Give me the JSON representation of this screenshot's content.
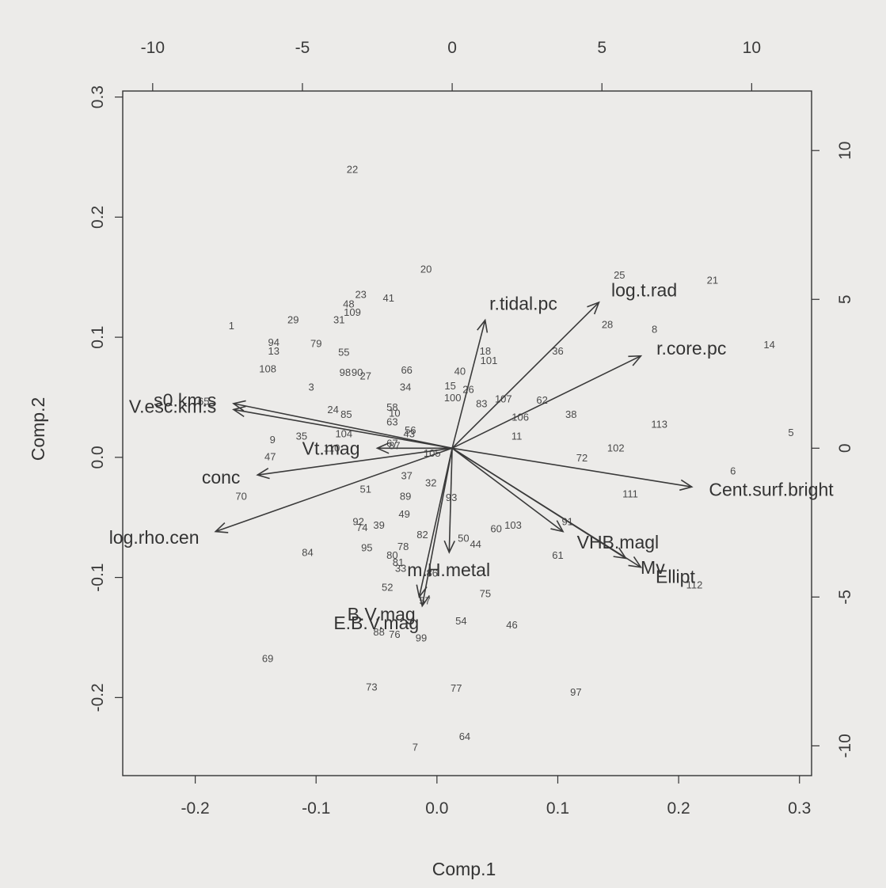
{
  "chart_data": {
    "type": "scatter",
    "xlabel": "Comp.1",
    "ylabel": "Comp.2",
    "xlim": [
      -0.26,
      0.31
    ],
    "ylim": [
      -0.265,
      0.305
    ],
    "x_ticks": [
      "-0.2",
      "-0.1",
      "0.0",
      "0.1",
      "0.2",
      "0.3"
    ],
    "y_ticks": [
      "-0.2",
      "-0.1",
      "0.0",
      "0.1",
      "0.2",
      "0.3"
    ],
    "top_ticks": [
      "-10",
      "-5",
      "0",
      "5",
      "10"
    ],
    "right_ticks": [
      "-10",
      "-5",
      "0",
      "5",
      "10"
    ],
    "loading_range": [
      -11,
      12
    ],
    "points": [
      {
        "label": "1",
        "x": -0.17,
        "y": 0.11
      },
      {
        "label": "3",
        "x": -0.104,
        "y": 0.059
      },
      {
        "label": "5",
        "x": 0.293,
        "y": 0.021
      },
      {
        "label": "6",
        "x": 0.245,
        "y": -0.011
      },
      {
        "label": "7",
        "x": -0.018,
        "y": -0.241
      },
      {
        "label": "8",
        "x": 0.18,
        "y": 0.107
      },
      {
        "label": "9",
        "x": -0.136,
        "y": 0.015
      },
      {
        "label": "10",
        "x": -0.035,
        "y": 0.037
      },
      {
        "label": "11",
        "x": 0.066,
        "y": 0.018
      },
      {
        "label": "13",
        "x": -0.135,
        "y": 0.089
      },
      {
        "label": "14",
        "x": 0.275,
        "y": 0.094
      },
      {
        "label": "15",
        "x": 0.011,
        "y": 0.06
      },
      {
        "label": "18",
        "x": 0.04,
        "y": 0.089
      },
      {
        "label": "20",
        "x": -0.009,
        "y": 0.157
      },
      {
        "label": "21",
        "x": 0.228,
        "y": 0.148
      },
      {
        "label": "22",
        "x": -0.07,
        "y": 0.24
      },
      {
        "label": "23",
        "x": -0.063,
        "y": 0.136
      },
      {
        "label": "24",
        "x": -0.086,
        "y": 0.04
      },
      {
        "label": "25",
        "x": 0.151,
        "y": 0.152
      },
      {
        "label": "26",
        "x": 0.026,
        "y": 0.057
      },
      {
        "label": "27",
        "x": -0.059,
        "y": 0.068
      },
      {
        "label": "28",
        "x": 0.141,
        "y": 0.111
      },
      {
        "label": "29",
        "x": -0.119,
        "y": 0.115
      },
      {
        "label": "31",
        "x": -0.081,
        "y": 0.115
      },
      {
        "label": "32",
        "x": -0.005,
        "y": -0.021
      },
      {
        "label": "33",
        "x": -0.03,
        "y": -0.092
      },
      {
        "label": "34",
        "x": -0.026,
        "y": 0.059
      },
      {
        "label": "35",
        "x": -0.112,
        "y": 0.018
      },
      {
        "label": "36",
        "x": 0.1,
        "y": 0.089
      },
      {
        "label": "37",
        "x": -0.025,
        "y": -0.015
      },
      {
        "label": "38",
        "x": 0.111,
        "y": 0.036
      },
      {
        "label": "39",
        "x": -0.048,
        "y": -0.056
      },
      {
        "label": "40",
        "x": 0.019,
        "y": 0.072
      },
      {
        "label": "41",
        "x": -0.04,
        "y": 0.133
      },
      {
        "label": "43",
        "x": -0.023,
        "y": 0.02
      },
      {
        "label": "44",
        "x": 0.032,
        "y": -0.072
      },
      {
        "label": "46",
        "x": 0.062,
        "y": -0.139
      },
      {
        "label": "47",
        "x": -0.138,
        "y": 0.001
      },
      {
        "label": "48",
        "x": -0.073,
        "y": 0.128
      },
      {
        "label": "49",
        "x": -0.027,
        "y": -0.047
      },
      {
        "label": "50",
        "x": 0.022,
        "y": -0.067
      },
      {
        "label": "51",
        "x": -0.059,
        "y": -0.026
      },
      {
        "label": "52",
        "x": -0.041,
        "y": -0.108
      },
      {
        "label": "54",
        "x": 0.02,
        "y": -0.136
      },
      {
        "label": "55",
        "x": -0.077,
        "y": 0.088
      },
      {
        "label": "56",
        "x": -0.022,
        "y": 0.023
      },
      {
        "label": "57",
        "x": -0.01,
        "y": -0.119
      },
      {
        "label": "58",
        "x": -0.037,
        "y": 0.042
      },
      {
        "label": "60",
        "x": 0.049,
        "y": -0.059
      },
      {
        "label": "61",
        "x": 0.1,
        "y": -0.081
      },
      {
        "label": "62",
        "x": 0.087,
        "y": 0.048
      },
      {
        "label": "63",
        "x": -0.037,
        "y": 0.03
      },
      {
        "label": "64",
        "x": 0.023,
        "y": -0.232
      },
      {
        "label": "65",
        "x": -0.193,
        "y": 0.047
      },
      {
        "label": "66",
        "x": -0.025,
        "y": 0.073
      },
      {
        "label": "67",
        "x": -0.037,
        "y": 0.012
      },
      {
        "label": "69",
        "x": -0.14,
        "y": -0.167
      },
      {
        "label": "70",
        "x": -0.162,
        "y": -0.032
      },
      {
        "label": "72",
        "x": 0.12,
        "y": 0.0
      },
      {
        "label": "73",
        "x": -0.054,
        "y": -0.191
      },
      {
        "label": "74",
        "x": -0.062,
        "y": -0.058
      },
      {
        "label": "75",
        "x": 0.04,
        "y": -0.113
      },
      {
        "label": "76",
        "x": -0.035,
        "y": -0.147
      },
      {
        "label": "77",
        "x": 0.016,
        "y": -0.192
      },
      {
        "label": "78",
        "x": -0.028,
        "y": -0.074
      },
      {
        "label": "79",
        "x": -0.1,
        "y": 0.095
      },
      {
        "label": "80",
        "x": -0.037,
        "y": -0.081
      },
      {
        "label": "81",
        "x": -0.032,
        "y": -0.087
      },
      {
        "label": "82",
        "x": -0.012,
        "y": -0.064
      },
      {
        "label": "83",
        "x": 0.037,
        "y": 0.045
      },
      {
        "label": "84",
        "x": -0.107,
        "y": -0.079
      },
      {
        "label": "85",
        "x": -0.075,
        "y": 0.036
      },
      {
        "label": "86",
        "x": -0.004,
        "y": -0.096
      },
      {
        "label": "87",
        "x": -0.035,
        "y": 0.01
      },
      {
        "label": "88",
        "x": -0.048,
        "y": -0.145
      },
      {
        "label": "89",
        "x": -0.026,
        "y": -0.032
      },
      {
        "label": "90",
        "x": -0.066,
        "y": 0.071
      },
      {
        "label": "91",
        "x": 0.108,
        "y": -0.053
      },
      {
        "label": "92",
        "x": -0.065,
        "y": -0.053
      },
      {
        "label": "93",
        "x": 0.012,
        "y": -0.033
      },
      {
        "label": "94",
        "x": -0.135,
        "y": 0.096
      },
      {
        "label": "95",
        "x": -0.058,
        "y": -0.075
      },
      {
        "label": "97",
        "x": 0.115,
        "y": -0.195
      },
      {
        "label": "98",
        "x": -0.076,
        "y": 0.071
      },
      {
        "label": "99",
        "x": -0.013,
        "y": -0.15
      },
      {
        "label": "100",
        "x": 0.013,
        "y": 0.05
      },
      {
        "label": "101",
        "x": 0.043,
        "y": 0.081
      },
      {
        "label": "102",
        "x": 0.148,
        "y": 0.008
      },
      {
        "label": "103",
        "x": 0.063,
        "y": -0.056
      },
      {
        "label": "104",
        "x": -0.077,
        "y": 0.02
      },
      {
        "label": "105",
        "x": -0.004,
        "y": 0.004
      },
      {
        "label": "106",
        "x": 0.069,
        "y": 0.034
      },
      {
        "label": "107",
        "x": 0.055,
        "y": 0.049
      },
      {
        "label": "108",
        "x": -0.14,
        "y": 0.074
      },
      {
        "label": "109",
        "x": -0.07,
        "y": 0.121
      },
      {
        "label": "110",
        "x": -0.087,
        "y": 0.008
      },
      {
        "label": "111",
        "x": 0.16,
        "y": -0.03
      },
      {
        "label": "112",
        "x": 0.213,
        "y": -0.106
      },
      {
        "label": "113",
        "x": 0.184,
        "y": 0.028
      }
    ],
    "loadings": [
      {
        "label": "log.t.rad",
        "x": 4.9,
        "y": 4.9
      },
      {
        "label": "r.tidal.pc",
        "x": 1.1,
        "y": 4.3
      },
      {
        "label": "r.core.pc",
        "x": 6.3,
        "y": 3.1
      },
      {
        "label": "s0.km.s",
        "x": -7.3,
        "y": 1.5
      },
      {
        "label": "V.esc.km.s",
        "x": -7.3,
        "y": 1.3
      },
      {
        "label": "Vt.mag",
        "x": -2.5,
        "y": 0.0
      },
      {
        "label": "conc",
        "x": -6.5,
        "y": -0.9
      },
      {
        "label": "log.rho.cen",
        "x": -7.9,
        "y": -2.8
      },
      {
        "label": "Cent.surf.bright",
        "x": 8.0,
        "y": -1.3
      },
      {
        "label": "VHB.magl",
        "x": 3.7,
        "y": -2.8
      },
      {
        "label": "Ellipt",
        "x": 6.3,
        "y": -4.0
      },
      {
        "label": "Mv",
        "x": 5.8,
        "y": -3.7
      },
      {
        "label": "m.H.metal",
        "x": -0.1,
        "y": -3.5
      },
      {
        "label": "E.B.V.mag",
        "x": -1.0,
        "y": -5.3
      },
      {
        "label": "B.V.mag",
        "x": -1.1,
        "y": -5.0
      }
    ]
  }
}
